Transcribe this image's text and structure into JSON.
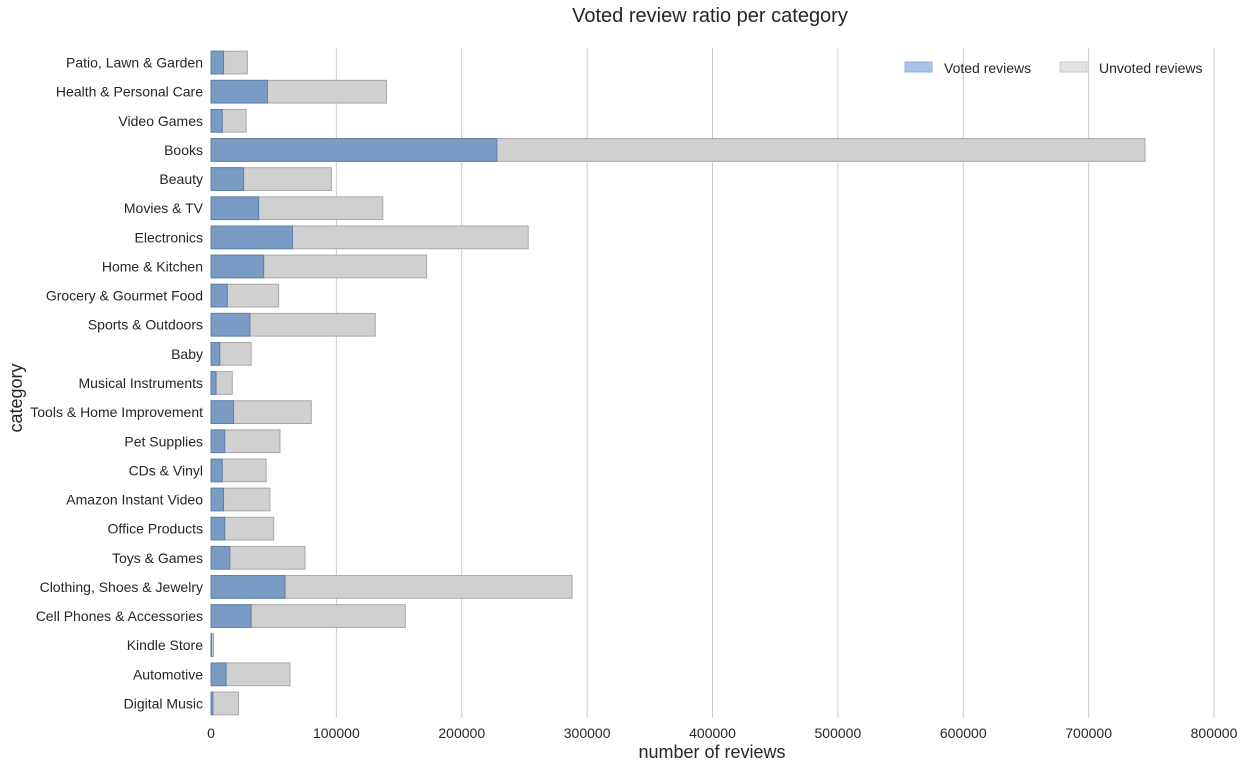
{
  "chart_data": {
    "type": "bar",
    "orientation": "horizontal",
    "stacked_overlay": true,
    "title": "Voted review ratio per category",
    "xlabel": "number of reviews",
    "ylabel": "category",
    "xlim": [
      0,
      800000
    ],
    "xticks": [
      0,
      100000,
      200000,
      300000,
      400000,
      500000,
      600000,
      700000,
      800000
    ],
    "xtick_labels": [
      "0",
      "100000",
      "200000",
      "300000",
      "400000",
      "500000",
      "600000",
      "700000",
      "800000"
    ],
    "grid": "vertical",
    "legend_position": "top-right",
    "categories": [
      "Patio, Lawn & Garden",
      "Health & Personal Care",
      "Video Games",
      "Books",
      "Beauty",
      "Movies & TV",
      "Electronics",
      "Home & Kitchen",
      "Grocery & Gourmet Food",
      "Sports & Outdoors",
      "Baby",
      "Musical Instruments",
      "Tools & Home Improvement",
      "Pet Supplies",
      "CDs & Vinyl",
      "Amazon Instant Video",
      "Office Products",
      "Toys & Games",
      "Clothing, Shoes & Jewelry",
      "Cell Phones & Accessories",
      "Kindle Store",
      "Automotive",
      "Digital Music"
    ],
    "series": [
      {
        "name": "Voted reviews",
        "color": "#7a9cc4",
        "values": [
          10000,
          45000,
          9000,
          228000,
          26000,
          38000,
          65000,
          42000,
          13000,
          31000,
          7000,
          4000,
          18000,
          11000,
          9000,
          10000,
          11000,
          15000,
          59000,
          32000,
          500,
          12000,
          1500
        ]
      },
      {
        "name": "Unvoted reviews",
        "color": "#d0d0d0",
        "values": [
          29000,
          140000,
          28000,
          745000,
          96000,
          137000,
          253000,
          172000,
          54000,
          131000,
          32000,
          17000,
          80000,
          55000,
          44000,
          47000,
          50000,
          75000,
          288000,
          155000,
          2000,
          63000,
          22000
        ]
      }
    ]
  }
}
